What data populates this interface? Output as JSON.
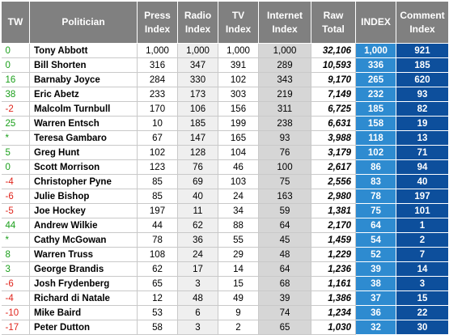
{
  "headers": {
    "tw": "TW",
    "politician": "Politician",
    "press": [
      "Press",
      "Index"
    ],
    "radio": [
      "Radio",
      "Index"
    ],
    "tv": [
      "TV",
      "Index"
    ],
    "internet": [
      "Internet",
      "Index"
    ],
    "raw": [
      "Raw",
      "Total"
    ],
    "index": "INDEX",
    "comment": [
      "Comment",
      "Index"
    ]
  },
  "colors": {
    "header_bg": "#808080",
    "positive_tw": "#1a9f1a",
    "negative_tw": "#e0241b",
    "index_bg": "#2e8bd0",
    "comment_bg": "#0d4f9c"
  },
  "rows": [
    {
      "tw": "0",
      "name": "Tony Abbott",
      "press": "1,000",
      "radio": "1,000",
      "tv": "1,000",
      "internet": "1,000",
      "raw": "32,106",
      "index": "1,000",
      "comment": "921"
    },
    {
      "tw": "0",
      "name": "Bill Shorten",
      "press": "316",
      "radio": "347",
      "tv": "391",
      "internet": "289",
      "raw": "10,593",
      "index": "336",
      "comment": "185"
    },
    {
      "tw": "16",
      "name": "Barnaby Joyce",
      "press": "284",
      "radio": "330",
      "tv": "102",
      "internet": "343",
      "raw": "9,170",
      "index": "265",
      "comment": "620"
    },
    {
      "tw": "38",
      "name": "Eric Abetz",
      "press": "233",
      "radio": "173",
      "tv": "303",
      "internet": "219",
      "raw": "7,149",
      "index": "232",
      "comment": "93"
    },
    {
      "tw": "-2",
      "name": "Malcolm Turnbull",
      "press": "170",
      "radio": "106",
      "tv": "156",
      "internet": "311",
      "raw": "6,725",
      "index": "185",
      "comment": "82"
    },
    {
      "tw": "25",
      "name": "Warren Entsch",
      "press": "10",
      "radio": "185",
      "tv": "199",
      "internet": "238",
      "raw": "6,631",
      "index": "158",
      "comment": "19"
    },
    {
      "tw": "*",
      "name": "Teresa Gambaro",
      "press": "67",
      "radio": "147",
      "tv": "165",
      "internet": "93",
      "raw": "3,988",
      "index": "118",
      "comment": "13"
    },
    {
      "tw": "5",
      "name": "Greg Hunt",
      "press": "102",
      "radio": "128",
      "tv": "104",
      "internet": "76",
      "raw": "3,179",
      "index": "102",
      "comment": "71"
    },
    {
      "tw": "0",
      "name": "Scott Morrison",
      "press": "123",
      "radio": "76",
      "tv": "46",
      "internet": "100",
      "raw": "2,617",
      "index": "86",
      "comment": "94"
    },
    {
      "tw": "-4",
      "name": "Christopher Pyne",
      "press": "85",
      "radio": "69",
      "tv": "103",
      "internet": "75",
      "raw": "2,556",
      "index": "83",
      "comment": "40"
    },
    {
      "tw": "-6",
      "name": "Julie Bishop",
      "press": "85",
      "radio": "40",
      "tv": "24",
      "internet": "163",
      "raw": "2,980",
      "index": "78",
      "comment": "197"
    },
    {
      "tw": "-5",
      "name": "Joe Hockey",
      "press": "197",
      "radio": "11",
      "tv": "34",
      "internet": "59",
      "raw": "1,381",
      "index": "75",
      "comment": "101"
    },
    {
      "tw": "44",
      "name": "Andrew Wilkie",
      "press": "44",
      "radio": "62",
      "tv": "88",
      "internet": "64",
      "raw": "2,170",
      "index": "64",
      "comment": "1"
    },
    {
      "tw": "*",
      "name": "Cathy McGowan",
      "press": "78",
      "radio": "36",
      "tv": "55",
      "internet": "45",
      "raw": "1,459",
      "index": "54",
      "comment": "2"
    },
    {
      "tw": "8",
      "name": "Warren Truss",
      "press": "108",
      "radio": "24",
      "tv": "29",
      "internet": "48",
      "raw": "1,229",
      "index": "52",
      "comment": "7"
    },
    {
      "tw": "3",
      "name": "George Brandis",
      "press": "62",
      "radio": "17",
      "tv": "14",
      "internet": "64",
      "raw": "1,236",
      "index": "39",
      "comment": "14"
    },
    {
      "tw": "-6",
      "name": "Josh Frydenberg",
      "press": "65",
      "radio": "3",
      "tv": "15",
      "internet": "68",
      "raw": "1,161",
      "index": "38",
      "comment": "3"
    },
    {
      "tw": "-4",
      "name": "Richard di Natale",
      "press": "12",
      "radio": "48",
      "tv": "49",
      "internet": "39",
      "raw": "1,386",
      "index": "37",
      "comment": "15"
    },
    {
      "tw": "-10",
      "name": "Mike Baird",
      "press": "53",
      "radio": "6",
      "tv": "9",
      "internet": "74",
      "raw": "1,234",
      "index": "36",
      "comment": "22"
    },
    {
      "tw": "-17",
      "name": "Peter Dutton",
      "press": "58",
      "radio": "3",
      "tv": "2",
      "internet": "65",
      "raw": "1,030",
      "index": "32",
      "comment": "30"
    }
  ]
}
